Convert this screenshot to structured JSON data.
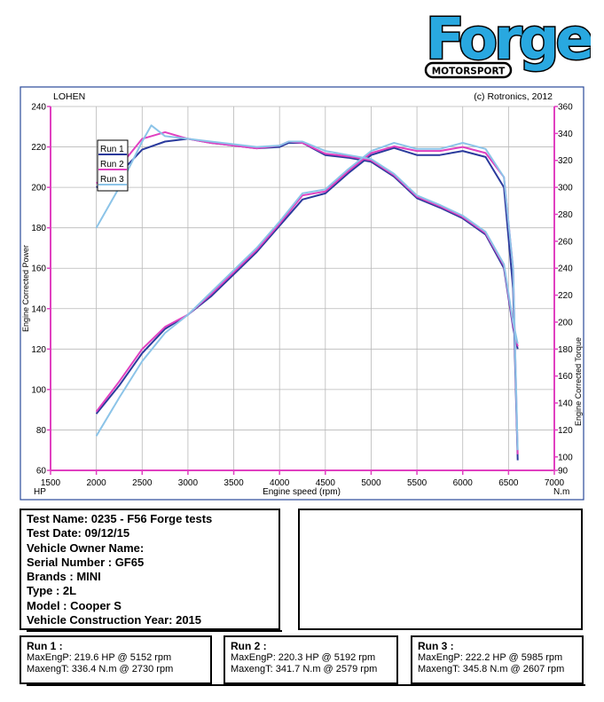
{
  "logo": {
    "brand": "Forge",
    "tagline": "MOTORSPORT"
  },
  "chart_data": {
    "type": "line",
    "header_left": "LOHEN",
    "header_right": "(c) Rotronics, 2012",
    "xlabel": "Engine speed (rpm)",
    "ylabel_left": "Engine Corrected Power",
    "ylabel_right": "Engine Corrected Torque",
    "unit_left": "HP",
    "unit_right": "N.m",
    "xlim": [
      1500,
      7000
    ],
    "ylim_left": [
      60,
      240
    ],
    "ylim_right": [
      90,
      360
    ],
    "x_ticks": [
      1500,
      2000,
      2500,
      3000,
      3500,
      4000,
      4500,
      5000,
      5500,
      6000,
      6500,
      7000
    ],
    "y_ticks_left": [
      60,
      80,
      100,
      120,
      140,
      160,
      180,
      200,
      220,
      240
    ],
    "y_ticks_right": [
      90,
      100,
      120,
      140,
      160,
      180,
      200,
      220,
      240,
      260,
      280,
      300,
      320,
      340,
      360
    ],
    "grid": true,
    "legend_position": "top-left",
    "series": [
      {
        "name": "Run 1",
        "color": "#2a3a9c",
        "power": {
          "x": [
            2000,
            2250,
            2500,
            2750,
            3000,
            3250,
            3500,
            3750,
            4000,
            4250,
            4500,
            4750,
            5000,
            5250,
            5500,
            5750,
            6000,
            6250,
            6450,
            6550,
            6600
          ],
          "y": [
            88,
            102,
            118,
            130,
            137,
            146,
            157,
            168,
            181,
            194,
            197,
            207,
            216,
            219.5,
            216,
            216,
            218,
            215,
            200,
            150,
            65
          ]
        },
        "torque": {
          "x": [
            2000,
            2250,
            2500,
            2750,
            3000,
            3250,
            3500,
            3750,
            4000,
            4100,
            4250,
            4500,
            4750,
            5000,
            5250,
            5500,
            5750,
            6000,
            6250,
            6450,
            6550,
            6600
          ],
          "y": [
            300,
            310,
            328,
            334,
            336,
            333,
            331,
            329,
            330,
            333,
            333,
            324,
            322,
            319,
            308,
            292,
            285,
            277,
            265,
            240,
            196,
            180
          ]
        }
      },
      {
        "name": "Run 2",
        "color": "#e040c0",
        "power": {
          "x": [
            2000,
            2250,
            2500,
            2750,
            3000,
            3250,
            3500,
            3750,
            4000,
            4250,
            4500,
            4750,
            5000,
            5250,
            5500,
            5750,
            6000,
            6250,
            6450,
            6550,
            6600
          ],
          "y": [
            89,
            104,
            120,
            131,
            137,
            147,
            158,
            169,
            182,
            196,
            198,
            208,
            217,
            220.3,
            218,
            218,
            220,
            217,
            205,
            160,
            68
          ]
        },
        "torque": {
          "x": [
            2000,
            2250,
            2500,
            2750,
            3000,
            3250,
            3500,
            3750,
            4000,
            4100,
            4250,
            4500,
            4750,
            5000,
            5250,
            5500,
            5750,
            6000,
            6250,
            6450,
            6550,
            6600
          ],
          "y": [
            303,
            315,
            336,
            341,
            336,
            333,
            331,
            329,
            331,
            334,
            333,
            325,
            323,
            320,
            309,
            293,
            286,
            278,
            266,
            242,
            198,
            182
          ]
        }
      },
      {
        "name": "Run 3",
        "color": "#8cc4e8",
        "power": {
          "x": [
            2000,
            2250,
            2500,
            2750,
            3000,
            3250,
            3500,
            3750,
            4000,
            4250,
            4500,
            4750,
            5000,
            5250,
            5500,
            5750,
            6000,
            6250,
            6450,
            6550,
            6600
          ],
          "y": [
            77,
            96,
            114,
            128,
            137,
            148,
            159,
            170,
            183,
            197,
            199,
            209,
            218,
            222,
            219,
            219,
            222,
            219,
            205,
            160,
            70
          ]
        },
        "torque": {
          "x": [
            2000,
            2250,
            2500,
            2600,
            2750,
            3000,
            3250,
            3500,
            3750,
            4000,
            4100,
            4250,
            4500,
            4750,
            5000,
            5250,
            5500,
            5750,
            6000,
            6250,
            6450,
            6550,
            6600
          ],
          "y": [
            270,
            300,
            334,
            346,
            338,
            336,
            334,
            332,
            330,
            331,
            334,
            334,
            327,
            324,
            321,
            310,
            294,
            287,
            279,
            267,
            243,
            200,
            184
          ]
        }
      }
    ]
  },
  "info": {
    "test_name": "Test Name: 0235 - F56 Forge tests",
    "test_date": "Test Date: 09/12/15",
    "owner": "Vehicle Owner Name:",
    "serial": "Serial Number  : GF65",
    "brands": "Brands  : MINI",
    "type": "Type  : 2L",
    "model": "Model  : Cooper S",
    "year": "Vehicle Construction Year: 2015"
  },
  "runs": [
    {
      "title": "Run 1 :",
      "max_power": "MaxEngP: 219.6 HP @ 5152 rpm",
      "max_torque": "MaxengT: 336.4 N.m @ 2730 rpm"
    },
    {
      "title": "Run 2 :",
      "max_power": "MaxEngP: 220.3 HP @ 5192 rpm",
      "max_torque": "MaxengT: 341.7 N.m @ 2579 rpm"
    },
    {
      "title": "Run 3 :",
      "max_power": "MaxEngP: 222.2 HP @ 5985 rpm",
      "max_torque": "MaxengT: 345.8 N.m @ 2607 rpm"
    }
  ]
}
